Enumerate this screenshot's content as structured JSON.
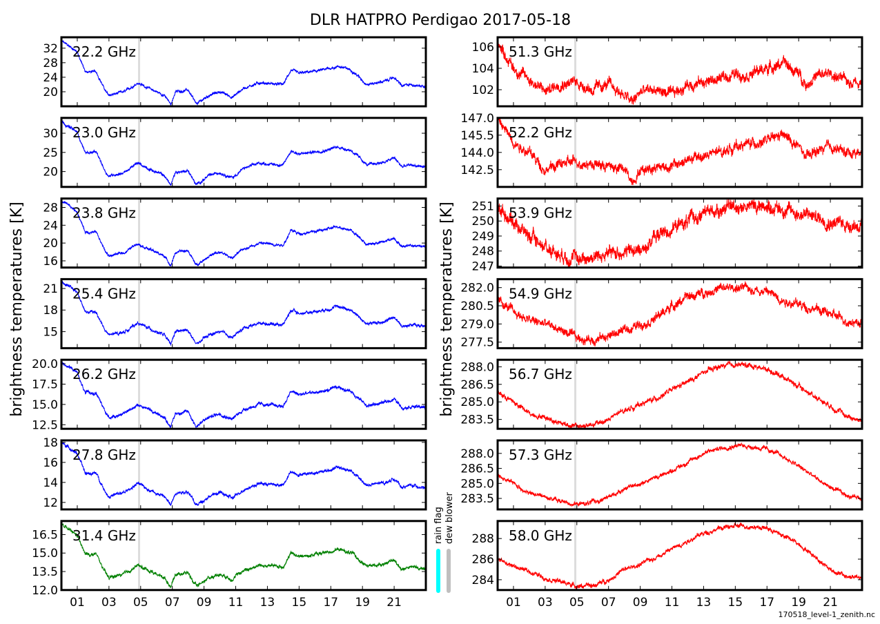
{
  "chart_data": {
    "type": "line",
    "title": "DLR HATPRO  Perdigao  2017-05-18",
    "ylabel": "brightness temperatures [K]",
    "xlabel": "",
    "xlim": [
      0,
      23
    ],
    "x_tick_values": [
      1,
      3,
      5,
      7,
      9,
      11,
      13,
      15,
      17,
      19,
      21
    ],
    "x_tick_labels": [
      "01",
      "03",
      "05",
      "07",
      "09",
      "11",
      "13",
      "15",
      "17",
      "19",
      "21"
    ],
    "marker_line_hour": 4.9,
    "footer": "170518_level-1_zenith.nc",
    "flags": {
      "rain_flag_label": "rain flag",
      "dew_blower_label": "dew blower",
      "rain_color": "#00ffff",
      "dew_color": "#bfbfbf"
    },
    "left_x": [
      0,
      1,
      1.5,
      2.2,
      2.8,
      3,
      4,
      4.8,
      5.5,
      6.5,
      6.9,
      7.2,
      8,
      8.5,
      9.3,
      10,
      10.8,
      11.5,
      12.5,
      14,
      14.5,
      15,
      16.5,
      17.5,
      18.3,
      19.3,
      20.5,
      21,
      21.5,
      22,
      23
    ],
    "right_x": [
      0,
      1,
      2,
      3,
      4,
      5,
      6,
      7,
      8,
      8.5,
      9,
      10,
      11,
      12,
      13,
      14,
      15,
      16,
      17,
      18,
      19,
      19.5,
      20,
      21,
      22,
      23
    ],
    "panels": [
      {
        "label": "22.2 GHz",
        "side": "left",
        "color": "#0000ff",
        "ylim": [
          16,
          35
        ],
        "yticks": [
          "20",
          "24",
          "28",
          "32"
        ],
        "noise": 0.5,
        "values": [
          34,
          31,
          25.5,
          25.5,
          20,
          19,
          20,
          22.5,
          21,
          19,
          16.5,
          20,
          20.5,
          16.5,
          19,
          20,
          18.5,
          21,
          22.5,
          22,
          26,
          25,
          26,
          27,
          26,
          22,
          23,
          24,
          21.5,
          22,
          21.5
        ]
      },
      {
        "label": "23.0 GHz",
        "side": "left",
        "color": "#0000ff",
        "ylim": [
          16,
          34
        ],
        "yticks": [
          "20",
          "25",
          "30"
        ],
        "noise": 0.5,
        "values": [
          33,
          30.2,
          25,
          25,
          19.8,
          18.9,
          19.8,
          22.2,
          20.8,
          18.9,
          16.5,
          19.8,
          20.3,
          16.5,
          18.9,
          19.8,
          18.4,
          20.8,
          22.2,
          21.7,
          25.5,
          24.5,
          25.5,
          26.4,
          25.5,
          21.7,
          22.6,
          23.6,
          21.2,
          21.7,
          21.2
        ]
      },
      {
        "label": "23.8 GHz",
        "side": "left",
        "color": "#0000ff",
        "ylim": [
          14.5,
          30
        ],
        "yticks": [
          "16",
          "20",
          "24",
          "28"
        ],
        "noise": 0.4,
        "values": [
          29.5,
          27,
          22.5,
          22.5,
          17.9,
          17.1,
          17.9,
          20,
          18.7,
          17.1,
          15,
          17.9,
          18.3,
          15,
          17.1,
          17.9,
          16.7,
          18.7,
          20,
          19.6,
          22.9,
          22.1,
          22.9,
          23.7,
          22.9,
          19.6,
          20.4,
          21.2,
          19.2,
          19.6,
          19.2
        ]
      },
      {
        "label": "25.4 GHz",
        "side": "left",
        "color": "#0000ff",
        "ylim": [
          12.7,
          22.3
        ],
        "yticks": [
          "15",
          "18",
          "21"
        ],
        "noise": 0.3,
        "values": [
          22,
          20.5,
          17.7,
          17.7,
          15,
          14.5,
          15,
          16.2,
          15.5,
          14.5,
          13.2,
          15,
          15.2,
          13.2,
          14.5,
          15,
          14.2,
          15.5,
          16.2,
          16,
          18,
          17.5,
          18,
          18.5,
          18,
          16,
          16.5,
          17,
          15.7,
          16,
          15.7
        ]
      },
      {
        "label": "26.2 GHz",
        "side": "left",
        "color": "#0000ff",
        "ylim": [
          12,
          20.5
        ],
        "yticks": [
          "12.5",
          "15.0",
          "17.5",
          "20.0"
        ],
        "noise": 0.28,
        "values": [
          20.3,
          18.9,
          16.4,
          16.4,
          13.9,
          13.4,
          13.9,
          15,
          14.4,
          13.4,
          12.3,
          13.9,
          14.1,
          12.3,
          13.4,
          13.9,
          13.2,
          14.4,
          15,
          14.8,
          16.6,
          16.2,
          16.6,
          17.1,
          16.6,
          14.8,
          15.3,
          15.7,
          14.6,
          14.8,
          14.6
        ]
      },
      {
        "label": "27.8 GHz",
        "side": "left",
        "color": "#0000ff",
        "ylim": [
          11.3,
          18.2
        ],
        "yticks": [
          "12",
          "14",
          "16",
          "18"
        ],
        "noise": 0.22,
        "values": [
          18,
          16.9,
          14.9,
          14.9,
          13,
          12.6,
          13,
          13.9,
          13.3,
          12.6,
          11.7,
          13,
          13.1,
          11.7,
          12.6,
          13,
          12.4,
          13.3,
          13.9,
          13.7,
          15.1,
          14.8,
          15.1,
          15.5,
          15.1,
          13.7,
          14.0,
          14.4,
          13.5,
          13.7,
          13.5
        ]
      },
      {
        "label": "31.4 GHz",
        "side": "left",
        "color": "#008000",
        "ylim": [
          12,
          17.6
        ],
        "yticks": [
          "12.0",
          "13.5",
          "15.0",
          "16.5"
        ],
        "noise": 0.2,
        "values": [
          17.3,
          16.4,
          14.9,
          14.9,
          13.3,
          13,
          13.3,
          14,
          13.6,
          13,
          12.3,
          13.3,
          13.4,
          12.3,
          13,
          13.3,
          12.9,
          13.6,
          14,
          13.9,
          15,
          14.7,
          15,
          15.3,
          15,
          13.9,
          14.2,
          14.4,
          13.7,
          13.9,
          13.7
        ]
      },
      {
        "label": "51.3 GHz",
        "side": "right",
        "color": "#ff0000",
        "ylim": [
          100.45,
          106.9
        ],
        "yticks": [
          "102",
          "104",
          "106"
        ],
        "noise": 0.7,
        "values": [
          106.5,
          104,
          103,
          101.8,
          102.7,
          102.7,
          102,
          102.5,
          101.5,
          100.8,
          101.8,
          102,
          101.5,
          102.5,
          102.7,
          103,
          103.5,
          103.5,
          104,
          104.5,
          103.5,
          102.5,
          103.2,
          103.5,
          102.8,
          102.8
        ]
      },
      {
        "label": "52.2 GHz",
        "side": "right",
        "color": "#ff0000",
        "ylim": [
          141,
          147
        ],
        "yticks": [
          "142.5",
          "144.0",
          "145.5",
          "147.0"
        ],
        "noise": 0.6,
        "values": [
          146.8,
          145,
          144,
          142.5,
          143,
          143.2,
          143,
          142.8,
          142.5,
          141.5,
          142.5,
          142.8,
          142.8,
          143.3,
          143.7,
          144,
          144.5,
          144.8,
          145,
          145.5,
          144.5,
          143.5,
          144,
          144.5,
          144,
          144
        ]
      },
      {
        "label": "53.9 GHz",
        "side": "right",
        "color": "#ff0000",
        "ylim": [
          246.9,
          251.5
        ],
        "yticks": [
          "247",
          "248",
          "249",
          "250",
          "251"
        ],
        "noise": 0.6,
        "values": [
          251,
          250,
          249,
          248.3,
          247.8,
          247.5,
          247.6,
          247.8,
          248,
          248,
          248,
          249,
          249.5,
          250,
          250.5,
          250.8,
          251,
          251,
          251,
          250.8,
          250.5,
          250.4,
          250.3,
          250,
          249.8,
          249.7
        ]
      },
      {
        "label": "54.9 GHz",
        "side": "right",
        "color": "#ff0000",
        "ylim": [
          277,
          282.7
        ],
        "yticks": [
          "277.5",
          "279.0",
          "280.5",
          "282.0"
        ],
        "noise": 0.5,
        "values": [
          281,
          280,
          279.3,
          279,
          278.5,
          277.8,
          277.7,
          278,
          278.5,
          278.7,
          279,
          279.5,
          280.5,
          281.2,
          281.6,
          281.9,
          282,
          281.9,
          281.7,
          281,
          280.6,
          280.4,
          280.3,
          279.8,
          279.3,
          279.1
        ]
      },
      {
        "label": "56.7 GHz",
        "side": "right",
        "color": "#ff0000",
        "ylim": [
          282.7,
          288.6
        ],
        "yticks": [
          "283.5",
          "285.0",
          "286.5",
          "288.0"
        ],
        "noise": 0.3,
        "values": [
          285.8,
          285,
          284,
          283.7,
          283.2,
          282.9,
          283,
          283.5,
          284.3,
          284.5,
          284.8,
          285.3,
          286,
          286.7,
          287.5,
          288,
          288.2,
          288.1,
          287.8,
          287.2,
          286.3,
          285.9,
          285.5,
          284.7,
          283.8,
          283.4
        ]
      },
      {
        "label": "57.3 GHz",
        "side": "right",
        "color": "#ff0000",
        "ylim": [
          282.4,
          289.3
        ],
        "yticks": [
          "283.5",
          "285.0",
          "286.5",
          "288.0"
        ],
        "noise": 0.3,
        "values": [
          285.8,
          285,
          284,
          283.7,
          283.2,
          282.9,
          283.1,
          283.6,
          284.5,
          284.7,
          285,
          285.6,
          286.3,
          287.1,
          288,
          288.5,
          288.8,
          288.7,
          288.4,
          287.7,
          286.7,
          286.2,
          285.6,
          284.6,
          283.8,
          283.6
        ]
      },
      {
        "label": "58.0 GHz",
        "side": "right",
        "color": "#ff0000",
        "ylim": [
          283,
          289.7
        ],
        "yticks": [
          "284",
          "286",
          "288"
        ],
        "noise": 0.3,
        "values": [
          286,
          285.3,
          284.8,
          284.2,
          283.8,
          283.4,
          283.4,
          284,
          285,
          285.2,
          285.5,
          286.2,
          287,
          287.8,
          288.5,
          289,
          289.2,
          289.2,
          289,
          288.3,
          287.5,
          286.9,
          286.3,
          285,
          284.3,
          284.2
        ]
      }
    ]
  }
}
